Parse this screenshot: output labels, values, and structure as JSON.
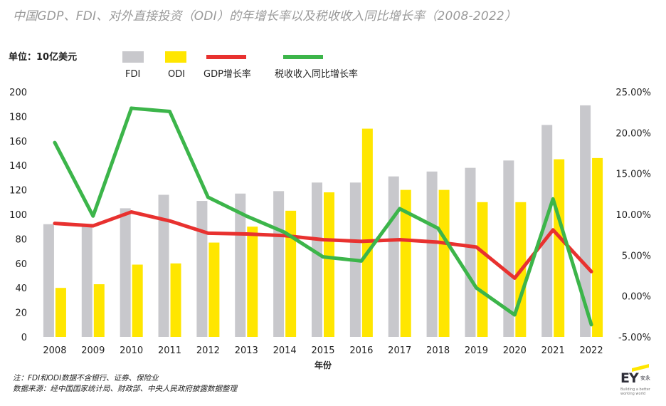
{
  "title": "中国GDP、FDI、对外直接投资（ODI）的年增长率以及税收收入同比增长率（2008-2022）",
  "unit_label": "单位：10亿美元",
  "notes": [
    "注：FDI和ODI数据不含银行、证券、保险业",
    "数据来源：经中国国家统计局、财政部、中央人民政府披露数据整理"
  ],
  "logo": {
    "text": "EY",
    "cn": "安永",
    "tagline": "Building a better working world"
  },
  "colors": {
    "fdi": "#c8c8cc",
    "odi": "#ffe600",
    "gdp": "#e8312f",
    "tax": "#3cb54a"
  },
  "chart_data": {
    "type": "bar",
    "title": "中国GDP、FDI、对外直接投资（ODI）的年增长率以及税收收入同比增长率（2008-2022）",
    "xlabel": "年份",
    "ylabel": "单位：10亿美元",
    "categories": [
      "2008",
      "2009",
      "2010",
      "2011",
      "2012",
      "2013",
      "2014",
      "2015",
      "2016",
      "2017",
      "2018",
      "2019",
      "2020",
      "2021",
      "2022"
    ],
    "y_left": {
      "lim": [
        0,
        200
      ],
      "ticks": [
        0,
        20,
        40,
        60,
        80,
        100,
        120,
        140,
        160,
        180,
        200
      ],
      "tick_labels": [
        "0",
        "20",
        "40",
        "60",
        "80",
        "100",
        "120",
        "140",
        "160",
        "180",
        "200"
      ]
    },
    "y_right": {
      "lim": [
        -5,
        25
      ],
      "ticks": [
        -5,
        0,
        5,
        10,
        15,
        20,
        25
      ],
      "tick_labels": [
        "-5.00%",
        "0.00%",
        "5.00%",
        "10.00%",
        "15.00%",
        "20.00%",
        "25.00%"
      ]
    },
    "series": [
      {
        "name": "FDI",
        "kind": "bar",
        "axis": "left",
        "color": "#c8c8cc",
        "values": [
          92,
          90,
          105,
          116,
          111,
          117,
          119,
          126,
          126,
          131,
          135,
          138,
          144,
          173,
          189
        ]
      },
      {
        "name": "ODI",
        "kind": "bar",
        "axis": "left",
        "color": "#ffe600",
        "values": [
          40,
          43,
          59,
          60,
          77,
          90,
          103,
          118,
          170,
          120,
          120,
          110,
          110,
          145,
          146
        ]
      },
      {
        "name": "GDP增长率",
        "kind": "line",
        "axis": "right",
        "color": "#e8312f",
        "values": [
          8.9,
          8.6,
          10.3,
          9.2,
          7.7,
          7.6,
          7.4,
          6.9,
          6.7,
          6.9,
          6.6,
          6.0,
          2.2,
          8.1,
          3.0
        ]
      },
      {
        "name": "税收收入同比增长率",
        "kind": "line",
        "axis": "right",
        "color": "#3cb54a",
        "values": [
          18.8,
          9.8,
          23.0,
          22.6,
          12.1,
          9.8,
          7.8,
          4.8,
          4.3,
          10.7,
          8.3,
          1.0,
          -2.3,
          11.9,
          -3.5
        ]
      }
    ],
    "legend_position": "top-left",
    "grid": false
  }
}
